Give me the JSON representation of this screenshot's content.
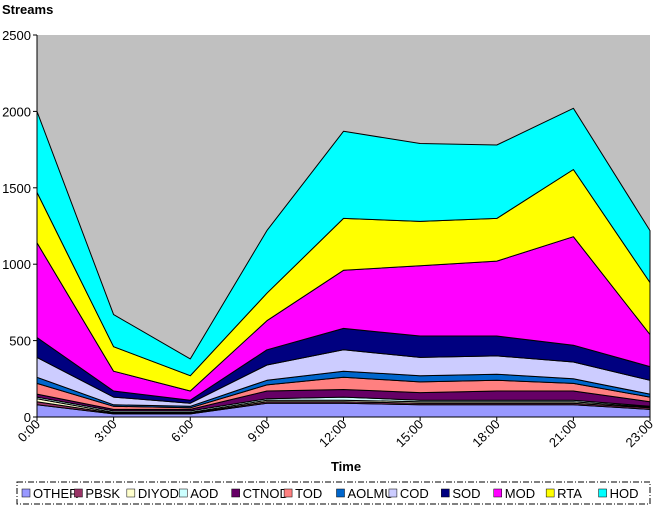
{
  "chart_data": {
    "type": "area",
    "stacked": true,
    "ylabel": "Streams",
    "xlabel": "Time",
    "categories": [
      "0:00",
      "3:00",
      "6:00",
      "9:00",
      "12:00",
      "15:00",
      "18:00",
      "21:00",
      "23:00"
    ],
    "ylim": [
      0,
      2500
    ],
    "yticks": [
      0,
      500,
      1000,
      1500,
      2000,
      2500
    ],
    "plot_background": "#c0c0c0",
    "gridlines": false,
    "legend_position": "bottom",
    "series": [
      {
        "name": "OTHER",
        "color": "#9999ff",
        "values": [
          80,
          20,
          20,
          90,
          90,
          80,
          80,
          80,
          50
        ]
      },
      {
        "name": "PBSK",
        "color": "#993366",
        "values": [
          20,
          5,
          5,
          10,
          10,
          10,
          10,
          10,
          10
        ]
      },
      {
        "name": "DIYOD",
        "color": "#ffffcc",
        "values": [
          20,
          5,
          5,
          10,
          10,
          10,
          10,
          10,
          5
        ]
      },
      {
        "name": "AOD",
        "color": "#ccffff",
        "values": [
          10,
          10,
          10,
          10,
          20,
          10,
          10,
          10,
          5
        ]
      },
      {
        "name": "CTNOD",
        "color": "#660066",
        "values": [
          20,
          10,
          10,
          50,
          50,
          50,
          60,
          60,
          30
        ]
      },
      {
        "name": "TOD",
        "color": "#ff8080",
        "values": [
          70,
          20,
          10,
          40,
          80,
          70,
          70,
          50,
          30
        ]
      },
      {
        "name": "AOLMU",
        "color": "#0066cc",
        "values": [
          40,
          10,
          10,
          30,
          40,
          40,
          40,
          30,
          20
        ]
      },
      {
        "name": "COD",
        "color": "#ccccff",
        "values": [
          130,
          50,
          20,
          100,
          140,
          120,
          120,
          110,
          90
        ]
      },
      {
        "name": "SOD",
        "color": "#000080",
        "values": [
          130,
          40,
          20,
          100,
          140,
          140,
          130,
          110,
          90
        ]
      },
      {
        "name": "MOD",
        "color": "#ff00ff",
        "values": [
          620,
          130,
          60,
          190,
          380,
          460,
          490,
          710,
          210
        ]
      },
      {
        "name": "RTA",
        "color": "#ffff00",
        "values": [
          330,
          160,
          100,
          180,
          340,
          290,
          280,
          440,
          340
        ]
      },
      {
        "name": "HOD",
        "color": "#00ffff",
        "values": [
          530,
          210,
          110,
          410,
          570,
          510,
          480,
          400,
          340
        ]
      }
    ]
  }
}
